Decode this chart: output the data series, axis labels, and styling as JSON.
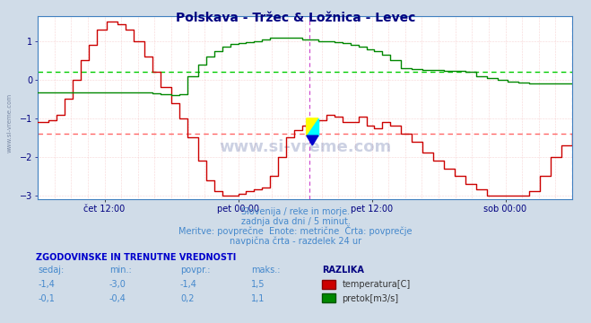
{
  "title": "Polskava - Tržec & Ložnica - Levec",
  "title_color": "#000080",
  "title_fontsize": 10,
  "bg_color": "#d0dce8",
  "plot_bg_color": "#ffffff",
  "xlabel_ticks": [
    "čet 12:00",
    "pet 00:00",
    "pet 12:00",
    "sob 00:00"
  ],
  "xlabel_tick_positions": [
    0.125,
    0.375,
    0.625,
    0.875
  ],
  "ylim": [
    -3.1,
    1.65
  ],
  "yticks": [
    -3,
    -2,
    -1,
    0,
    1
  ],
  "tick_color": "#000080",
  "temp_color": "#cc0000",
  "flow_color": "#008800",
  "avg_temp": -1.4,
  "avg_flow": 0.2,
  "avg_temp_color": "#ff6666",
  "avg_flow_color": "#00cc00",
  "vline_color": "#cc44cc",
  "vline_pos": 0.508,
  "watermark": "www.si-vreme.com",
  "watermark_color": "#1a3080",
  "watermark_alpha": 0.22,
  "subtitle1": "Slovenija / reke in morje.",
  "subtitle2": "zadnja dva dni / 5 minut.",
  "subtitle3": "Meritve: povprečne  Enote: metrične  Črta: povprečje",
  "subtitle4": "navpična črta - razdelek 24 ur",
  "subtitle_color": "#4488cc",
  "table_header": "ZGODOVINSKE IN TRENUTNE VREDNOSTI",
  "table_header_color": "#0000cc",
  "col_headers": [
    "sedaj:",
    "min.:",
    "povpr.:",
    "maks.:",
    "RAZLIKA"
  ],
  "col_header_color": "#4488cc",
  "razlika_color": "#000080",
  "temp_row": [
    "-1,4",
    "-3,0",
    "-1,4",
    "1,5",
    "temperatura[C]"
  ],
  "flow_row": [
    "-0,1",
    "-0,4",
    "0,2",
    "1,1",
    "pretok[m3/s]"
  ],
  "row_data_color": "#4488cc",
  "sidewatermark": "www.si-vreme.com",
  "red_temp_data_x": [
    0.0,
    0.01,
    0.02,
    0.035,
    0.05,
    0.065,
    0.08,
    0.095,
    0.11,
    0.13,
    0.15,
    0.165,
    0.18,
    0.2,
    0.215,
    0.23,
    0.25,
    0.265,
    0.28,
    0.3,
    0.315,
    0.33,
    0.345,
    0.36,
    0.375,
    0.39,
    0.405,
    0.42,
    0.435,
    0.45,
    0.465,
    0.48,
    0.495,
    0.51,
    0.525,
    0.54,
    0.555,
    0.57,
    0.585,
    0.6,
    0.615,
    0.63,
    0.645,
    0.66,
    0.68,
    0.7,
    0.72,
    0.74,
    0.76,
    0.78,
    0.8,
    0.82,
    0.84,
    0.86,
    0.88,
    0.9,
    0.92,
    0.94,
    0.96,
    0.98,
    1.0
  ],
  "red_temp_data_y": [
    -1.1,
    -1.1,
    -1.05,
    -0.9,
    -0.5,
    0.0,
    0.5,
    0.9,
    1.3,
    1.5,
    1.45,
    1.3,
    1.0,
    0.6,
    0.2,
    -0.2,
    -0.6,
    -1.0,
    -1.5,
    -2.1,
    -2.6,
    -2.9,
    -3.0,
    -3.0,
    -2.95,
    -2.9,
    -2.85,
    -2.8,
    -2.5,
    -2.0,
    -1.5,
    -1.3,
    -1.2,
    -1.1,
    -1.05,
    -0.9,
    -0.95,
    -1.1,
    -1.1,
    -0.95,
    -1.2,
    -1.25,
    -1.1,
    -1.2,
    -1.4,
    -1.6,
    -1.9,
    -2.1,
    -2.3,
    -2.5,
    -2.7,
    -2.85,
    -3.0,
    -3.0,
    -3.0,
    -3.0,
    -2.9,
    -2.5,
    -2.0,
    -1.7,
    -1.4
  ],
  "green_flow_data_x": [
    0.0,
    0.01,
    0.02,
    0.035,
    0.05,
    0.065,
    0.08,
    0.095,
    0.11,
    0.13,
    0.15,
    0.165,
    0.18,
    0.2,
    0.215,
    0.23,
    0.25,
    0.265,
    0.28,
    0.3,
    0.315,
    0.33,
    0.345,
    0.36,
    0.375,
    0.39,
    0.405,
    0.42,
    0.435,
    0.45,
    0.465,
    0.48,
    0.495,
    0.51,
    0.525,
    0.54,
    0.555,
    0.57,
    0.585,
    0.6,
    0.615,
    0.63,
    0.645,
    0.66,
    0.68,
    0.7,
    0.72,
    0.74,
    0.76,
    0.78,
    0.8,
    0.82,
    0.84,
    0.86,
    0.88,
    0.9,
    0.92,
    0.94,
    0.96,
    0.98,
    1.0
  ],
  "green_flow_data_y": [
    -0.32,
    -0.32,
    -0.32,
    -0.32,
    -0.32,
    -0.32,
    -0.32,
    -0.32,
    -0.32,
    -0.32,
    -0.32,
    -0.32,
    -0.32,
    -0.33,
    -0.35,
    -0.38,
    -0.4,
    -0.38,
    0.1,
    0.4,
    0.6,
    0.75,
    0.85,
    0.92,
    0.95,
    0.98,
    1.0,
    1.05,
    1.1,
    1.1,
    1.1,
    1.1,
    1.05,
    1.05,
    1.0,
    1.0,
    0.98,
    0.95,
    0.9,
    0.85,
    0.8,
    0.75,
    0.65,
    0.5,
    0.3,
    0.28,
    0.26,
    0.25,
    0.24,
    0.22,
    0.2,
    0.1,
    0.05,
    0.0,
    -0.05,
    -0.08,
    -0.1,
    -0.1,
    -0.1,
    -0.1,
    -0.1
  ]
}
